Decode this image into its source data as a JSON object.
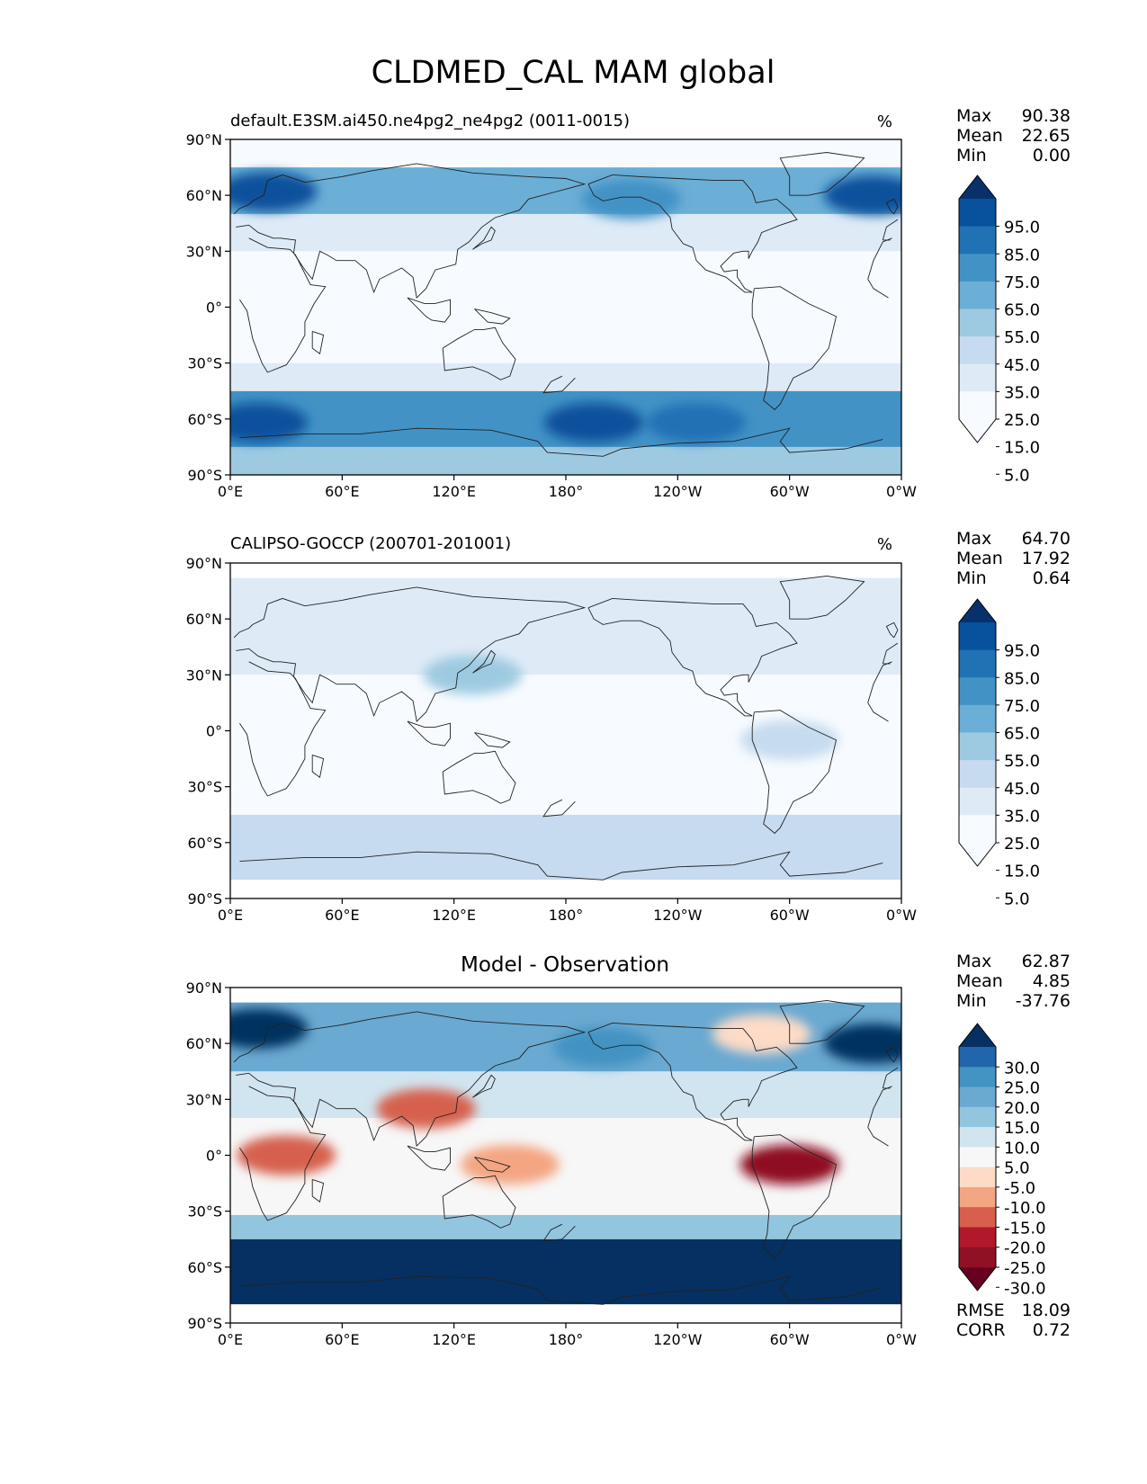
{
  "figure": {
    "title": "CLDMED_CAL MAM global"
  },
  "axes": {
    "lat_ticks": [
      "90°N",
      "60°N",
      "30°N",
      "0°",
      "30°S",
      "60°S",
      "90°S"
    ],
    "lon_ticks": [
      "0°E",
      "60°E",
      "120°E",
      "180°",
      "120°W",
      "60°W",
      "0°W"
    ]
  },
  "stat_labels": {
    "max": "Max",
    "mean": "Mean",
    "min": "Min",
    "rmse": "RMSE",
    "corr": "CORR"
  },
  "chart_data": [
    {
      "type": "heatmap",
      "panel": "model",
      "title": "default.E3SM.ai450.ne4pg2_ne4pg2 (0011-0015)",
      "units": "%",
      "stats": {
        "max": "90.38",
        "mean": "22.65",
        "min": "0.00"
      },
      "colorbar": {
        "labels": [
          "95.0",
          "85.0",
          "75.0",
          "65.0",
          "55.0",
          "45.0",
          "35.0",
          "25.0",
          "15.0",
          "5.0"
        ],
        "colors": [
          "#08306b",
          "#08519c",
          "#2171b5",
          "#4292c6",
          "#6baed6",
          "#9ecae1",
          "#c6dbef",
          "#deebf7",
          "#f7fbff"
        ]
      },
      "lat_bands": [
        {
          "lat": [
            -90,
            -75
          ],
          "value": 45
        },
        {
          "lat": [
            -75,
            -45
          ],
          "value": 65
        },
        {
          "lat": [
            -45,
            -30
          ],
          "value": 25
        },
        {
          "lat": [
            -30,
            30
          ],
          "value": 8
        },
        {
          "lat": [
            30,
            50
          ],
          "value": 30
        },
        {
          "lat": [
            50,
            75
          ],
          "value": 55
        },
        {
          "lat": [
            75,
            90
          ],
          "value": 20
        }
      ],
      "features": [
        {
          "lon": 15,
          "lat": -62,
          "value": 85
        },
        {
          "lon": 195,
          "lat": -62,
          "value": 85
        },
        {
          "lon": 250,
          "lat": -62,
          "value": 80
        },
        {
          "lon": 20,
          "lat": 62,
          "value": 85
        },
        {
          "lon": 345,
          "lat": 60,
          "value": 90
        },
        {
          "lon": 215,
          "lat": 58,
          "value": 70
        }
      ]
    },
    {
      "type": "heatmap",
      "panel": "observation",
      "title": "CALIPSO-GOCCP (200701-201001)",
      "units": "%",
      "stats": {
        "max": "64.70",
        "mean": "17.92",
        "min": "0.64"
      },
      "colorbar": {
        "labels": [
          "95.0",
          "85.0",
          "75.0",
          "65.0",
          "55.0",
          "45.0",
          "35.0",
          "25.0",
          "15.0",
          "5.0"
        ],
        "colors": [
          "#08306b",
          "#08519c",
          "#2171b5",
          "#4292c6",
          "#6baed6",
          "#9ecae1",
          "#c6dbef",
          "#deebf7",
          "#f7fbff"
        ]
      },
      "lat_range": [
        -80,
        82
      ],
      "lat_bands": [
        {
          "lat": [
            -80,
            -45
          ],
          "value": 35
        },
        {
          "lat": [
            -45,
            -30
          ],
          "value": 22
        },
        {
          "lat": [
            -30,
            30
          ],
          "value": 15
        },
        {
          "lat": [
            30,
            82
          ],
          "value": 25
        }
      ],
      "features": [
        {
          "lon": 130,
          "lat": 30,
          "value": 45
        },
        {
          "lon": 300,
          "lat": -5,
          "value": 35
        }
      ]
    },
    {
      "type": "heatmap",
      "panel": "difference",
      "title": "Model - Observation",
      "stats": {
        "max": "62.87",
        "mean": "4.85",
        "min": "-37.76"
      },
      "extra_stats": {
        "rmse": "18.09",
        "corr": "0.72"
      },
      "colorbar": {
        "labels": [
          "30.0",
          "25.0",
          "20.0",
          "15.0",
          "10.0",
          "5.0",
          "-5.0",
          "-10.0",
          "-15.0",
          "-20.0",
          "-25.0",
          "-30.0"
        ],
        "colors": [
          "#053061",
          "#2166ac",
          "#4393c3",
          "#6aa9d1",
          "#92c5de",
          "#d1e5f0",
          "#f7f7f7",
          "#fddbc7",
          "#f4a582",
          "#d6604d",
          "#b2182b",
          "#8f1123",
          "#67001f"
        ]
      },
      "lat_range": [
        -80,
        82
      ],
      "lat_bands": [
        {
          "lat": [
            -80,
            -45
          ],
          "value": 32
        },
        {
          "lat": [
            -45,
            -32
          ],
          "value": 12
        },
        {
          "lat": [
            -32,
            -20
          ],
          "value": 0
        },
        {
          "lat": [
            -20,
            20
          ],
          "value": -4
        },
        {
          "lat": [
            20,
            45
          ],
          "value": 8
        },
        {
          "lat": [
            45,
            82
          ],
          "value": 18
        }
      ],
      "features": [
        {
          "lon": 15,
          "lat": 68,
          "value": 32
        },
        {
          "lon": 345,
          "lat": 60,
          "value": 32
        },
        {
          "lon": 30,
          "lat": 0,
          "value": -18
        },
        {
          "lon": 300,
          "lat": -5,
          "value": -28
        },
        {
          "lon": 105,
          "lat": 25,
          "value": -20
        },
        {
          "lon": 150,
          "lat": -5,
          "value": -14
        },
        {
          "lon": 285,
          "lat": 65,
          "value": -8
        },
        {
          "lon": 200,
          "lat": 58,
          "value": 22
        }
      ]
    }
  ]
}
